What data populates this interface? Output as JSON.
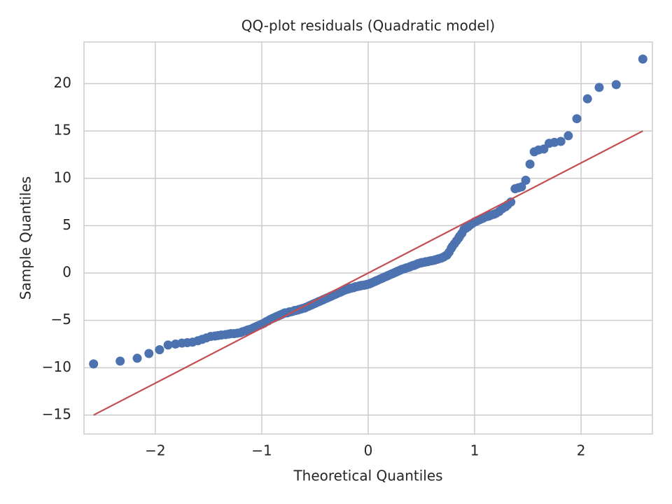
{
  "chart_data": {
    "type": "scatter",
    "title": "QQ-plot residuals (Quadratic model)",
    "x_label": "Theoretical Quantiles",
    "y_label": "Sample Quantiles",
    "xlim": [
      -2.67,
      2.67
    ],
    "ylim": [
      -17,
      24.4
    ],
    "xticks": [
      {
        "value": -2,
        "label": "−2"
      },
      {
        "value": -1,
        "label": "−1"
      },
      0,
      1,
      2
    ],
    "yticks": [
      {
        "value": -15,
        "label": "−15"
      },
      {
        "value": -10,
        "label": "−10"
      },
      {
        "value": -5,
        "label": "−5"
      },
      0,
      5,
      10,
      15,
      20
    ],
    "grid": true,
    "series": [
      {
        "color": "#4c72b0",
        "x": [
          -2.58,
          -2.33,
          -2.17,
          -2.06,
          -1.96,
          -1.88,
          -1.81,
          -1.75,
          -1.7,
          -1.65,
          -1.6,
          -1.56,
          -1.52,
          -1.48,
          -1.44,
          -1.41,
          -1.38,
          -1.34,
          -1.31,
          -1.29,
          -1.26,
          -1.23,
          -1.2,
          -1.18,
          -1.15,
          -1.13,
          -1.11,
          -1.08,
          -1.06,
          -1.04,
          -1.02,
          -1.0,
          -0.98,
          -0.96,
          -0.94,
          -0.92,
          -0.9,
          -0.88,
          -0.86,
          -0.85,
          -0.83,
          -0.81,
          -0.79,
          -0.78,
          -0.76,
          -0.74,
          -0.73,
          -0.71,
          -0.69,
          -0.68,
          -0.66,
          -0.65,
          -0.63,
          -0.62,
          -0.6,
          -0.59,
          -0.57,
          -0.56,
          -0.54,
          -0.53,
          -0.51,
          -0.5,
          -0.49,
          -0.47,
          -0.46,
          -0.45,
          -0.43,
          -0.42,
          -0.4,
          -0.39,
          -0.38,
          -0.36,
          -0.35,
          -0.34,
          -0.32,
          -0.31,
          -0.3,
          -0.28,
          -0.27,
          -0.26,
          -0.25,
          -0.23,
          -0.22,
          -0.21,
          -0.19,
          -0.18,
          -0.17,
          -0.16,
          -0.14,
          -0.13,
          -0.12,
          -0.11,
          -0.09,
          -0.08,
          -0.07,
          -0.06,
          -0.04,
          -0.03,
          -0.02,
          -0.01,
          0.01,
          0.02,
          0.03,
          0.04,
          0.06,
          0.07,
          0.08,
          0.09,
          0.11,
          0.12,
          0.13,
          0.14,
          0.16,
          0.17,
          0.18,
          0.19,
          0.21,
          0.22,
          0.23,
          0.25,
          0.26,
          0.27,
          0.28,
          0.3,
          0.31,
          0.32,
          0.34,
          0.35,
          0.36,
          0.38,
          0.39,
          0.4,
          0.42,
          0.43,
          0.45,
          0.46,
          0.47,
          0.49,
          0.5,
          0.51,
          0.53,
          0.54,
          0.56,
          0.57,
          0.59,
          0.6,
          0.62,
          0.63,
          0.65,
          0.66,
          0.68,
          0.69,
          0.71,
          0.73,
          0.74,
          0.76,
          0.78,
          0.79,
          0.81,
          0.83,
          0.85,
          0.86,
          0.88,
          0.9,
          0.92,
          0.94,
          0.96,
          0.98,
          1.0,
          1.02,
          1.04,
          1.06,
          1.08,
          1.11,
          1.13,
          1.15,
          1.18,
          1.2,
          1.23,
          1.26,
          1.29,
          1.31,
          1.34,
          1.38,
          1.41,
          1.44,
          1.48,
          1.52,
          1.56,
          1.6,
          1.65,
          1.7,
          1.75,
          1.81,
          1.88,
          1.96,
          2.06,
          2.17,
          2.33,
          2.58
        ],
        "values": [
          -9.6,
          -9.3,
          -9.0,
          -8.5,
          -8.1,
          -7.6,
          -7.5,
          -7.4,
          -7.35,
          -7.3,
          -7.15,
          -7.0,
          -6.85,
          -6.7,
          -6.65,
          -6.6,
          -6.55,
          -6.5,
          -6.45,
          -6.4,
          -6.4,
          -6.35,
          -6.3,
          -6.2,
          -6.1,
          -6.0,
          -5.95,
          -5.8,
          -5.7,
          -5.6,
          -5.5,
          -5.4,
          -5.3,
          -5.15,
          -5.05,
          -4.9,
          -4.8,
          -4.7,
          -4.6,
          -4.55,
          -4.45,
          -4.35,
          -4.25,
          -4.2,
          -4.2,
          -4.1,
          -4.1,
          -4.05,
          -3.95,
          -3.95,
          -3.9,
          -3.85,
          -3.8,
          -3.75,
          -3.7,
          -3.65,
          -3.55,
          -3.5,
          -3.4,
          -3.35,
          -3.25,
          -3.2,
          -3.15,
          -3.05,
          -3.0,
          -2.95,
          -2.85,
          -2.8,
          -2.7,
          -2.65,
          -2.6,
          -2.5,
          -2.45,
          -2.4,
          -2.3,
          -2.25,
          -2.2,
          -2.1,
          -2.05,
          -2.0,
          -1.95,
          -1.85,
          -1.8,
          -1.75,
          -1.7,
          -1.65,
          -1.6,
          -1.6,
          -1.55,
          -1.5,
          -1.45,
          -1.45,
          -1.4,
          -1.35,
          -1.35,
          -1.3,
          -1.3,
          -1.25,
          -1.25,
          -1.2,
          -1.15,
          -1.1,
          -1.05,
          -1.0,
          -0.9,
          -0.85,
          -0.8,
          -0.75,
          -0.65,
          -0.6,
          -0.55,
          -0.5,
          -0.4,
          -0.35,
          -0.3,
          -0.25,
          -0.15,
          -0.1,
          -0.05,
          0.05,
          0.1,
          0.15,
          0.2,
          0.3,
          0.35,
          0.4,
          0.45,
          0.5,
          0.55,
          0.6,
          0.65,
          0.7,
          0.8,
          0.8,
          0.9,
          0.95,
          1.0,
          1.05,
          1.1,
          1.1,
          1.15,
          1.2,
          1.2,
          1.25,
          1.3,
          1.3,
          1.35,
          1.4,
          1.45,
          1.5,
          1.55,
          1.6,
          1.7,
          1.85,
          1.9,
          2.2,
          2.6,
          2.8,
          3.1,
          3.4,
          3.7,
          3.9,
          4.2,
          4.6,
          4.75,
          4.9,
          5.1,
          5.25,
          5.4,
          5.5,
          5.6,
          5.7,
          5.8,
          5.95,
          6.0,
          6.1,
          6.2,
          6.3,
          6.5,
          6.8,
          7.0,
          7.2,
          7.5,
          8.9,
          9.0,
          9.1,
          9.8,
          11.5,
          12.8,
          13.0,
          13.1,
          13.7,
          13.8,
          13.9,
          14.5,
          16.3,
          18.4,
          19.6,
          19.9,
          22.6
        ]
      }
    ],
    "reference_line": {
      "color": "#c44e52",
      "x": [
        -2.58,
        2.58
      ],
      "values": [
        -15,
        15
      ]
    }
  }
}
